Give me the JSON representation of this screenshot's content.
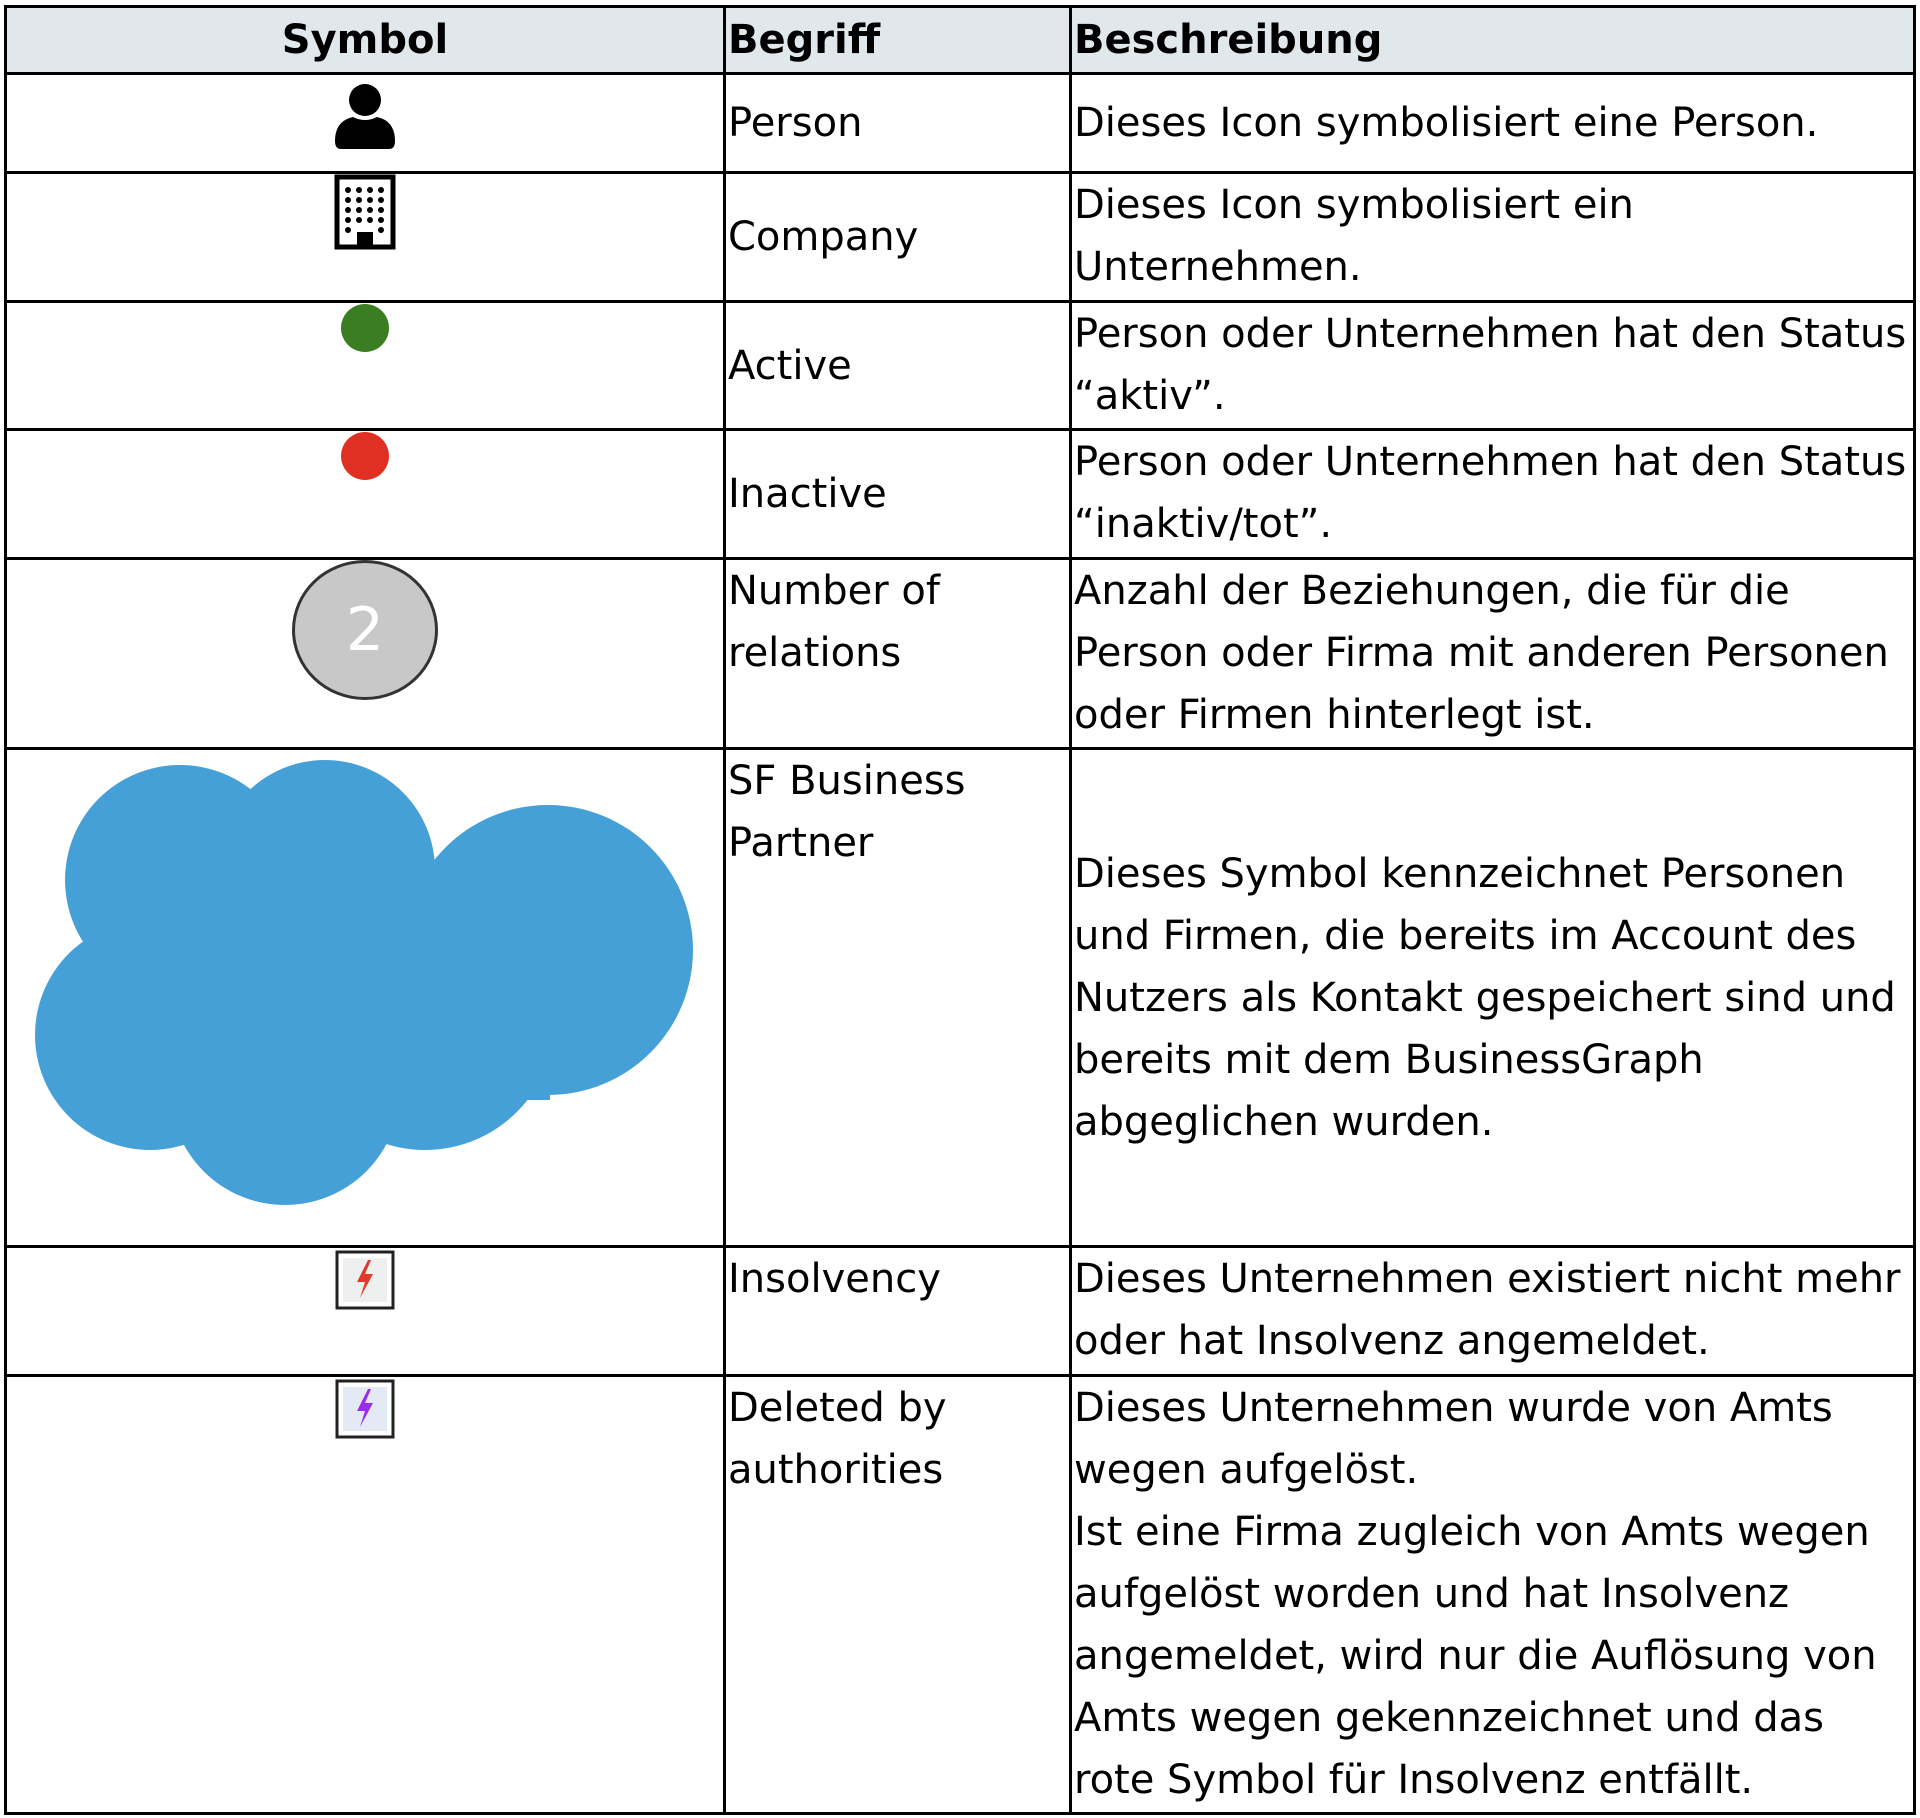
{
  "headers": {
    "symbol": "Symbol",
    "term": "Begriff",
    "description": "Beschreibung"
  },
  "rows": [
    {
      "icon": "person-icon",
      "term": "Person",
      "description": "Dieses Icon symbolisiert eine Person."
    },
    {
      "icon": "building-icon",
      "term": "Company",
      "description": "Dieses Icon symbolisiert ein Unternehmen."
    },
    {
      "icon": "green-dot-icon",
      "color": "#3a7d22",
      "term": "Active",
      "description": "Person oder Unternehmen hat den Status “aktiv”."
    },
    {
      "icon": "red-dot-icon",
      "color": "#e03024",
      "term": "Inactive",
      "description": "Person oder Unternehmen hat den Status “inaktiv/tot”."
    },
    {
      "icon": "relations-count-icon",
      "badge": "2",
      "term": "Number of relations",
      "description": "Anzahl der Beziehungen, die für die Person oder Firma mit anderen Personen oder Firmen hinterlegt ist."
    },
    {
      "icon": "cloud-icon",
      "color": "#46a0d8",
      "term": "SF Business Partner",
      "description": "Dieses Symbol kennzeichnet Personen und Firmen, die bereits im Account des Nutzers als Kontakt gespeichert sind und bereits mit dem BusinessGraph abgeglichen wurden."
    },
    {
      "icon": "lightning-red-icon",
      "color": "#e03a2a",
      "term": "Insolvency",
      "description": "Dieses Unternehmen existiert nicht mehr oder hat Insolvenz angemeldet."
    },
    {
      "icon": "lightning-purple-icon",
      "color": "#9a2cf0",
      "term": "Deleted by authorities",
      "description": "Dieses Unternehmen wurde von Amts wegen aufgelöst.",
      "description2": "Ist eine Firma zugleich von Amts wegen aufgelöst worden und hat Insolvenz angemeldet, wird nur die Auflösung von Amts wegen gekennzeichnet und das rote Symbol für Insolvenz entfällt."
    }
  ]
}
